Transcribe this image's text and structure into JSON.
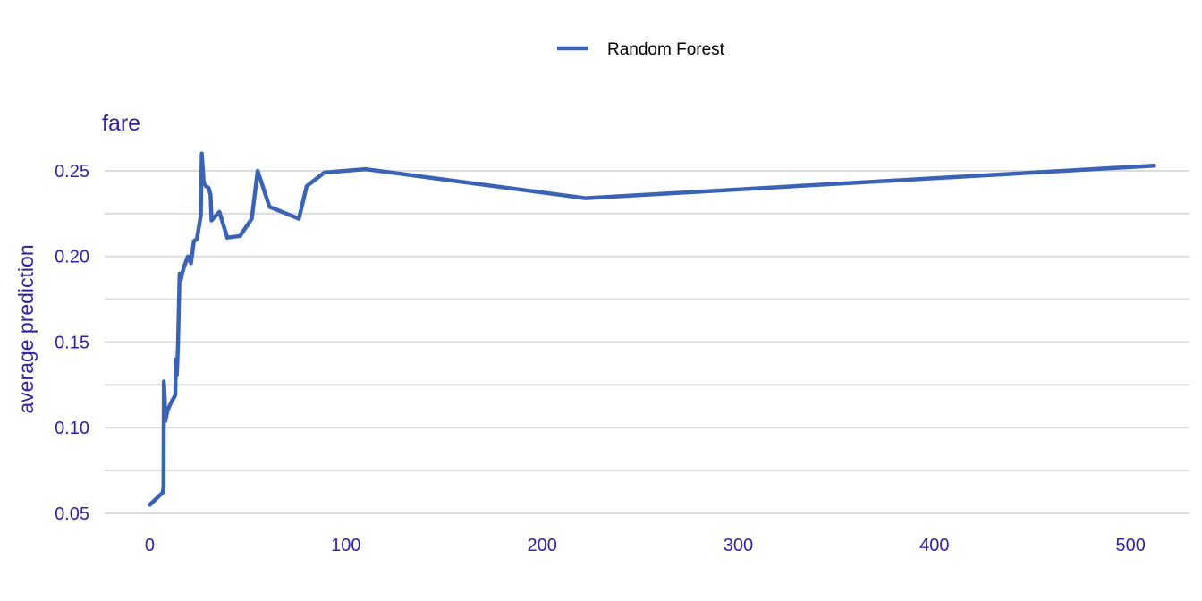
{
  "chart_data": {
    "type": "line",
    "title": "fare",
    "xlabel": "",
    "ylabel": "average prediction",
    "xlim": [
      -23,
      530
    ],
    "ylim": [
      0.05,
      0.262
    ],
    "x_ticks": [
      0,
      100,
      200,
      300,
      400,
      500
    ],
    "y_ticks": [
      0.05,
      0.1,
      0.15,
      0.2,
      0.25
    ],
    "y_tick_labels": [
      "0.05",
      "0.10",
      "0.15",
      "0.20",
      "0.25"
    ],
    "minor_gridlines_y": [
      0.075,
      0.125,
      0.175,
      0.225
    ],
    "grid": true,
    "legend_position": "top",
    "series": [
      {
        "name": "Random Forest",
        "color": "#3b63b5",
        "points": [
          [
            0,
            0.055
          ],
          [
            6.5,
            0.062
          ],
          [
            7.0,
            0.065
          ],
          [
            7.2,
            0.127
          ],
          [
            7.6,
            0.118
          ],
          [
            8.0,
            0.104
          ],
          [
            9.0,
            0.11
          ],
          [
            11.0,
            0.115
          ],
          [
            13.0,
            0.119
          ],
          [
            13.3,
            0.14
          ],
          [
            13.8,
            0.131
          ],
          [
            14.4,
            0.148
          ],
          [
            15.2,
            0.19
          ],
          [
            15.8,
            0.186
          ],
          [
            16.5,
            0.19
          ],
          [
            17.5,
            0.194
          ],
          [
            19.5,
            0.2
          ],
          [
            21.0,
            0.196
          ],
          [
            22.5,
            0.209
          ],
          [
            24.0,
            0.21
          ],
          [
            26.0,
            0.224
          ],
          [
            26.5,
            0.26
          ],
          [
            27.5,
            0.243
          ],
          [
            28.7,
            0.241
          ],
          [
            30.0,
            0.24
          ],
          [
            31.0,
            0.236
          ],
          [
            31.5,
            0.221
          ],
          [
            35.5,
            0.226
          ],
          [
            39.5,
            0.211
          ],
          [
            46.0,
            0.212
          ],
          [
            52.0,
            0.222
          ],
          [
            55.0,
            0.25
          ],
          [
            61.0,
            0.229
          ],
          [
            76.0,
            0.222
          ],
          [
            80.0,
            0.241
          ],
          [
            89.0,
            0.249
          ],
          [
            110.0,
            0.251
          ],
          [
            222.0,
            0.234
          ],
          [
            512.0,
            0.253
          ]
        ]
      }
    ]
  }
}
